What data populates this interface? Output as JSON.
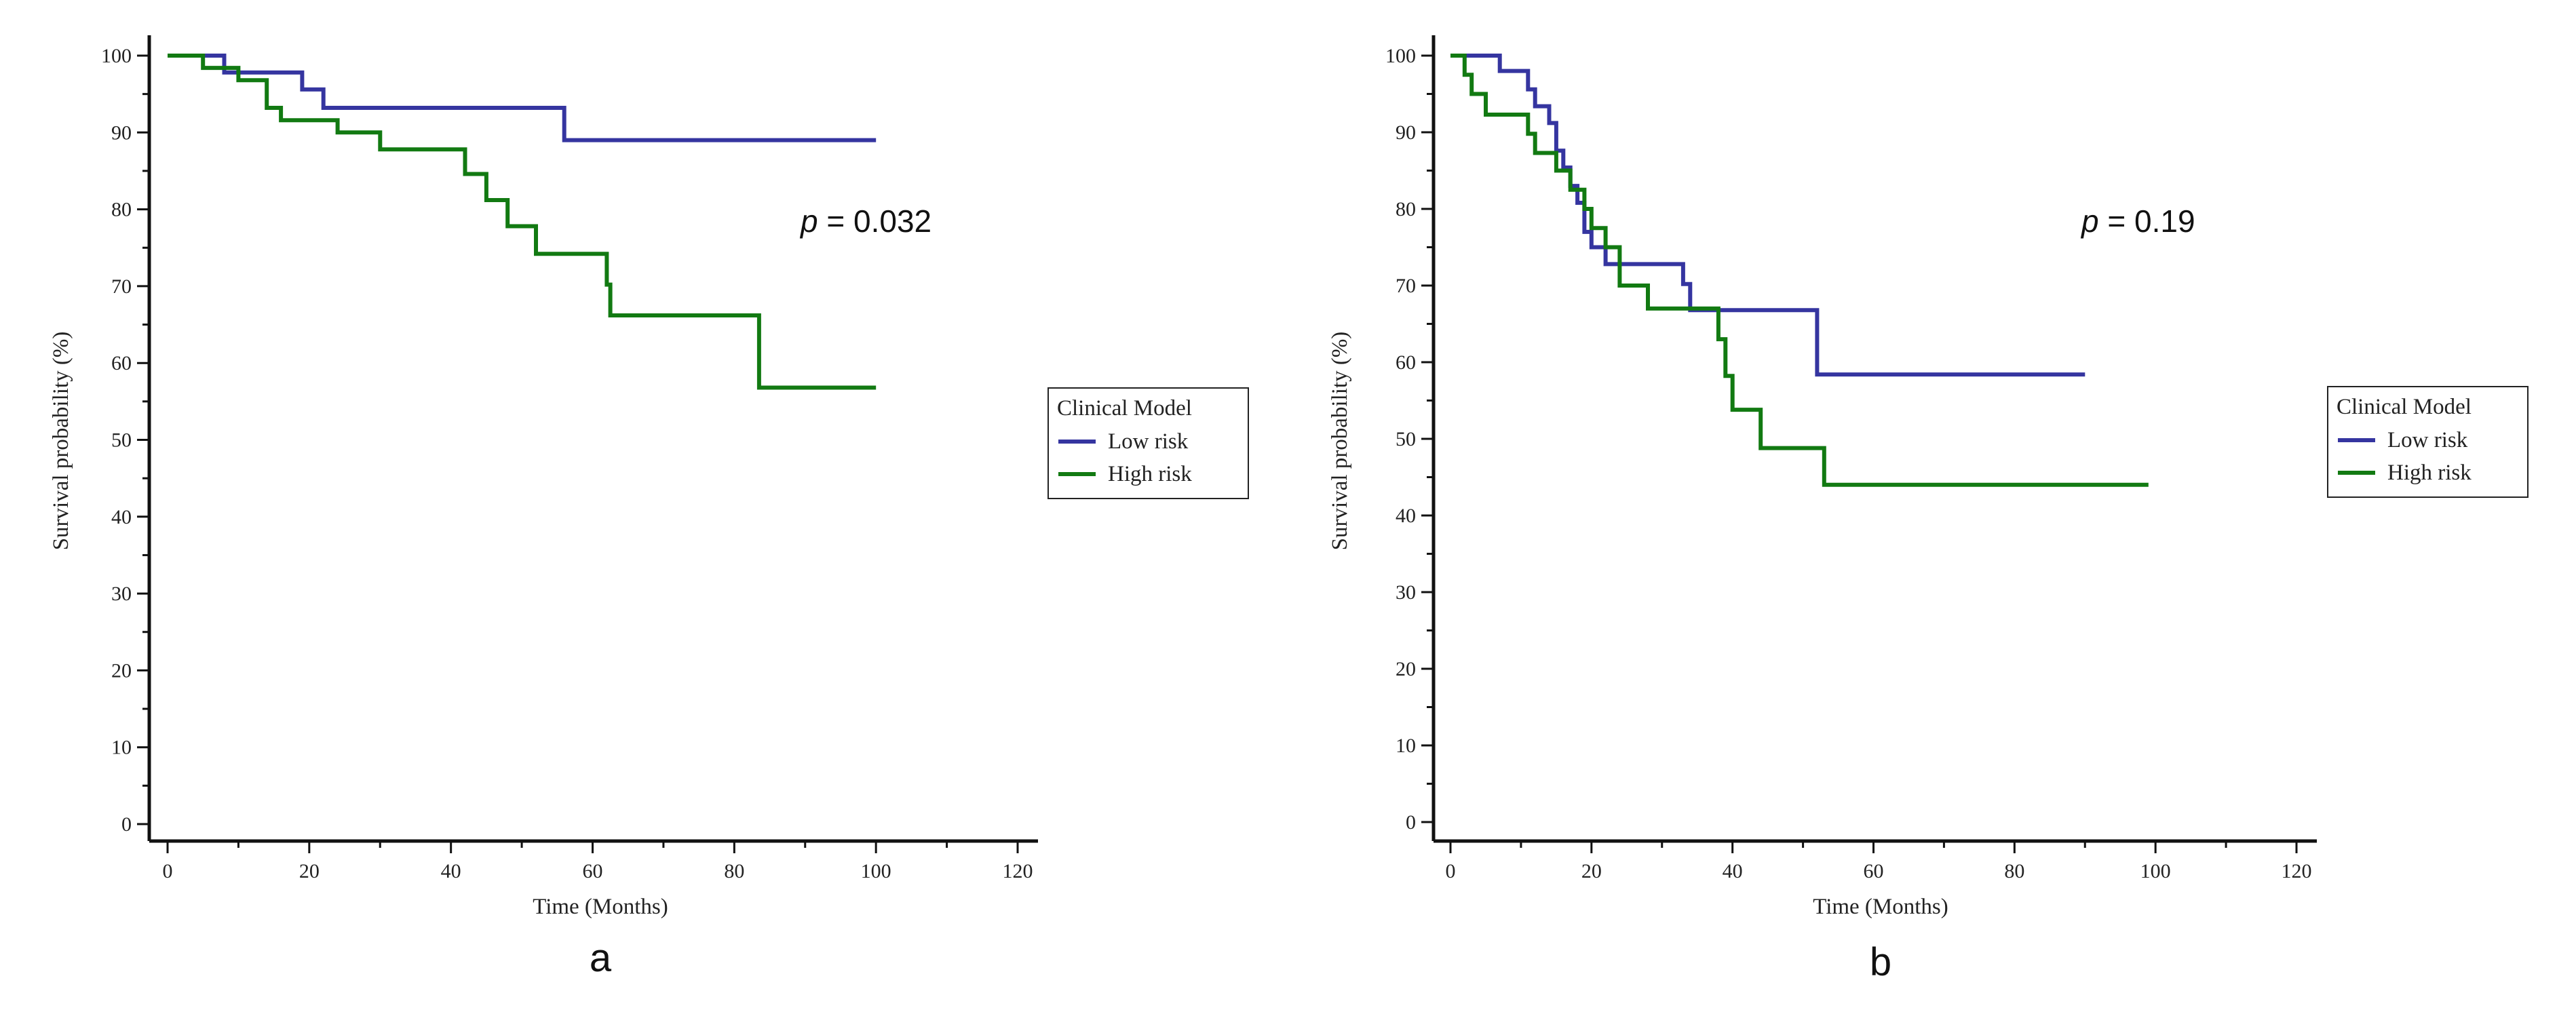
{
  "colors": {
    "low_risk": "#3535a0",
    "high_risk": "#127a12",
    "axis": "#111111"
  },
  "chart_data": [
    {
      "type": "line",
      "subtype": "kaplan-meier",
      "panel_label": "a",
      "xlabel": "Time (Months)",
      "ylabel": "Survival probability (%)",
      "xlim": [
        0,
        120
      ],
      "ylim": [
        0,
        100
      ],
      "xticks": [
        0,
        20,
        40,
        60,
        80,
        100,
        120
      ],
      "yticks": [
        0,
        10,
        20,
        30,
        40,
        50,
        60,
        70,
        80,
        90,
        100
      ],
      "annotation": {
        "prefix": "p",
        "text": " = 0.032"
      },
      "legend": {
        "title": "Clinical Model",
        "position": "right",
        "entries": [
          "Low risk",
          "High risk"
        ]
      },
      "series": [
        {
          "name": "Low risk",
          "color_key": "low_risk",
          "steps": [
            [
              0,
              100
            ],
            [
              8,
              97.8
            ],
            [
              19,
              95.6
            ],
            [
              22,
              93.2
            ],
            [
              56,
              89
            ],
            [
              100,
              89
            ]
          ]
        },
        {
          "name": "High risk",
          "color_key": "high_risk",
          "steps": [
            [
              0,
              100
            ],
            [
              5,
              98.4
            ],
            [
              10,
              96.8
            ],
            [
              14,
              93.2
            ],
            [
              16,
              91.6
            ],
            [
              24,
              90
            ],
            [
              30,
              87.8
            ],
            [
              42,
              84.6
            ],
            [
              45,
              81.2
            ],
            [
              48,
              77.8
            ],
            [
              52,
              74.2
            ],
            [
              62,
              70.2
            ],
            [
              62.5,
              66.2
            ],
            [
              83.5,
              56.8
            ],
            [
              100,
              56.8
            ]
          ]
        }
      ]
    },
    {
      "type": "line",
      "subtype": "kaplan-meier",
      "panel_label": "b",
      "xlabel": "Time (Months)",
      "ylabel": "Survival probability (%)",
      "xlim": [
        0,
        120
      ],
      "ylim": [
        0,
        100
      ],
      "xticks": [
        0,
        20,
        40,
        60,
        80,
        100,
        120
      ],
      "yticks": [
        0,
        10,
        20,
        30,
        40,
        50,
        60,
        70,
        80,
        90,
        100
      ],
      "annotation": {
        "prefix": "p",
        "text": " = 0.19"
      },
      "legend": {
        "title": "Clinical Model",
        "position": "right",
        "entries": [
          "Low risk",
          "High risk"
        ]
      },
      "series": [
        {
          "name": "Low risk",
          "color_key": "low_risk",
          "steps": [
            [
              0,
              100
            ],
            [
              7,
              98
            ],
            [
              11,
              95.6
            ],
            [
              12,
              93.4
            ],
            [
              14,
              91.2
            ],
            [
              15,
              87.6
            ],
            [
              16,
              85.4
            ],
            [
              17,
              83
            ],
            [
              18,
              80.8
            ],
            [
              19,
              77
            ],
            [
              20,
              75
            ],
            [
              22,
              72.8
            ],
            [
              33,
              70.2
            ],
            [
              34,
              66.8
            ],
            [
              52,
              58.4
            ],
            [
              90,
              58.4
            ]
          ]
        },
        {
          "name": "High risk",
          "color_key": "high_risk",
          "steps": [
            [
              0,
              100
            ],
            [
              2,
              97.5
            ],
            [
              3,
              95
            ],
            [
              5,
              92.3
            ],
            [
              11,
              89.8
            ],
            [
              12,
              87.3
            ],
            [
              15,
              85
            ],
            [
              17,
              82.5
            ],
            [
              19,
              80
            ],
            [
              20,
              77.5
            ],
            [
              22,
              75
            ],
            [
              24,
              70
            ],
            [
              28,
              67
            ],
            [
              38,
              63
            ],
            [
              39,
              58.2
            ],
            [
              40,
              53.8
            ],
            [
              44,
              48.8
            ],
            [
              53,
              44
            ],
            [
              99,
              44
            ]
          ]
        }
      ]
    }
  ]
}
